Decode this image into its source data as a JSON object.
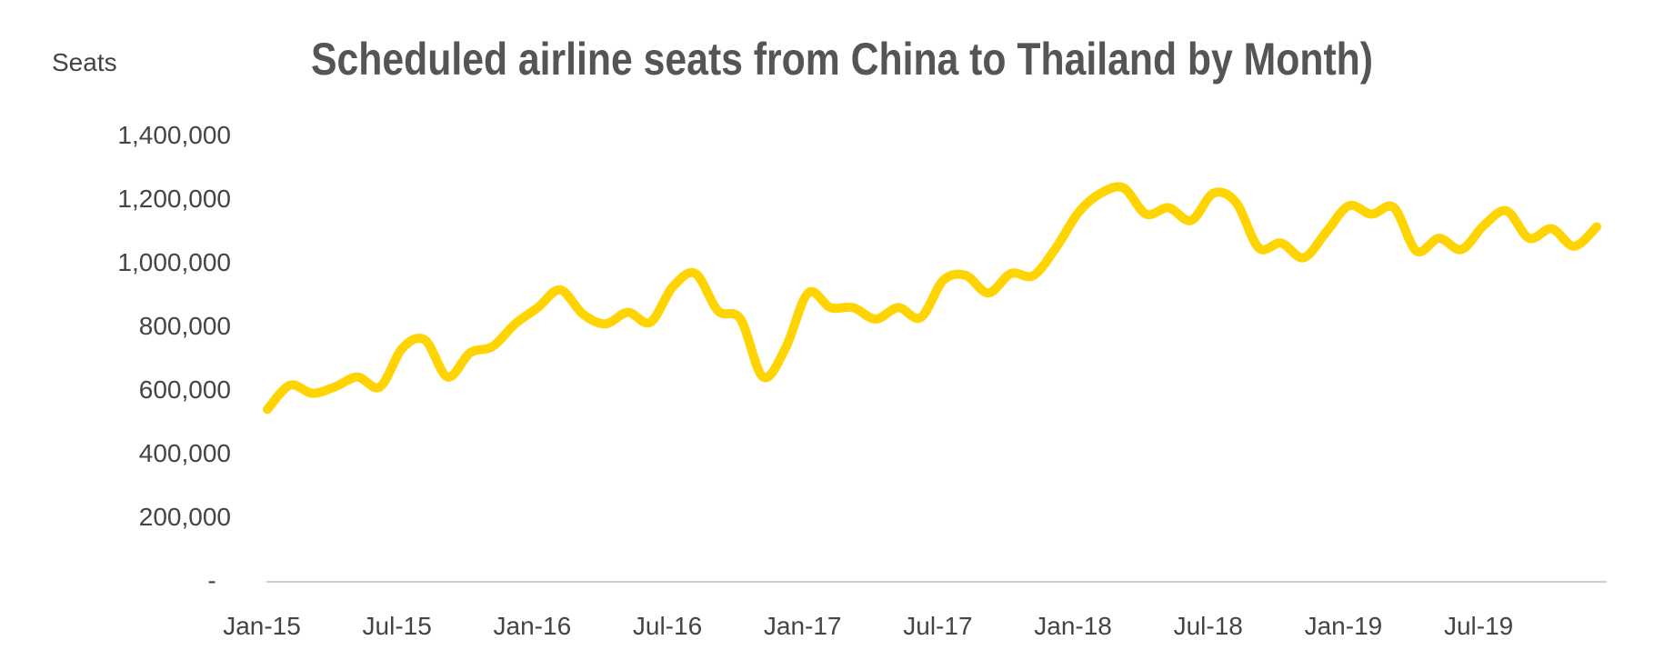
{
  "chart_data": {
    "type": "line",
    "title": "Scheduled airline seats from China to Thailand by Month)",
    "xlabel": "",
    "ylabel": "Seats",
    "ylim": [
      0,
      1400000
    ],
    "yticks": [
      0,
      200000,
      400000,
      600000,
      800000,
      1000000,
      1200000,
      1400000
    ],
    "ytick_labels": [
      "-",
      "200,000",
      "400,000",
      "600,000",
      "800,000",
      "1,000,000",
      "1,200,000",
      "1,400,000"
    ],
    "xtick_labels": [
      "Jan-15",
      "Jul-15",
      "Jan-16",
      "Jul-16",
      "Jan-17",
      "Jul-17",
      "Jan-18",
      "Jul-18",
      "Jan-19",
      "Jul-19"
    ],
    "grid": false,
    "line_color": "#FFD400",
    "x": [
      "Jan-15",
      "Feb-15",
      "Mar-15",
      "Apr-15",
      "May-15",
      "Jun-15",
      "Jul-15",
      "Aug-15",
      "Sep-15",
      "Oct-15",
      "Nov-15",
      "Dec-15",
      "Jan-16",
      "Feb-16",
      "Mar-16",
      "Apr-16",
      "May-16",
      "Jun-16",
      "Jul-16",
      "Aug-16",
      "Sep-16",
      "Oct-16",
      "Nov-16",
      "Dec-16",
      "Jan-17",
      "Feb-17",
      "Mar-17",
      "Apr-17",
      "May-17",
      "Jun-17",
      "Jul-17",
      "Aug-17",
      "Sep-17",
      "Oct-17",
      "Nov-17",
      "Dec-17",
      "Jan-18",
      "Feb-18",
      "Mar-18",
      "Apr-18",
      "May-18",
      "Jun-18",
      "Jul-18",
      "Aug-18",
      "Sep-18",
      "Oct-18",
      "Nov-18",
      "Dec-18",
      "Jan-19",
      "Feb-19",
      "Mar-19",
      "Apr-19",
      "May-19",
      "Jun-19",
      "Jul-19",
      "Aug-19",
      "Sep-19",
      "Oct-19",
      "Nov-19",
      "Dec-19"
    ],
    "values": [
      536000,
      612000,
      587000,
      607000,
      638000,
      607000,
      729000,
      754000,
      638000,
      714000,
      734000,
      805000,
      856000,
      912000,
      836000,
      805000,
      841000,
      810000,
      922000,
      963000,
      846000,
      820000,
      638000,
      729000,
      902000,
      856000,
      856000,
      820000,
      856000,
      825000,
      942000,
      957000,
      902000,
      963000,
      957000,
      1044000,
      1155000,
      1216000,
      1232000,
      1150000,
      1170000,
      1130000,
      1216000,
      1186000,
      1044000,
      1059000,
      1013000,
      1094000,
      1176000,
      1150000,
      1170000,
      1034000,
      1074000,
      1039000,
      1115000,
      1160000,
      1074000,
      1104000,
      1049000,
      1110000
    ]
  }
}
